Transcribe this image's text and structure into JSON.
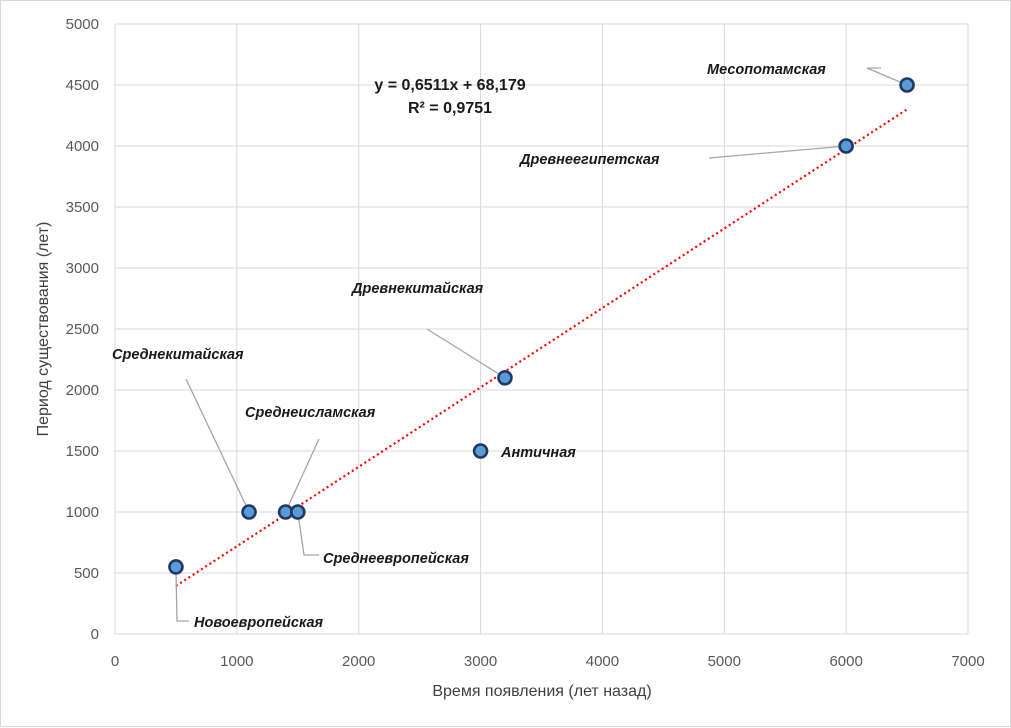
{
  "chart_data": {
    "type": "scatter",
    "xlabel": "Время появления (лет назад)",
    "ylabel": "Период существования (лет)",
    "xlim": [
      0,
      7000
    ],
    "ylim": [
      0,
      5000
    ],
    "xticks": [
      0,
      1000,
      2000,
      3000,
      4000,
      5000,
      6000,
      7000
    ],
    "yticks": [
      0,
      500,
      1000,
      1500,
      2000,
      2500,
      3000,
      3500,
      4000,
      4500,
      5000
    ],
    "grid": true,
    "points": [
      {
        "label": "Месопотамская",
        "x": 6500,
        "y": 4500
      },
      {
        "label": "Древнеегипетская",
        "x": 6000,
        "y": 4000
      },
      {
        "label": "Древнекитайская",
        "x": 3200,
        "y": 2100
      },
      {
        "label": "Античная",
        "x": 3000,
        "y": 1500
      },
      {
        "label": "Среднекитайская",
        "x": 1100,
        "y": 1000
      },
      {
        "label": "Среднеисламская",
        "x": 1400,
        "y": 1000
      },
      {
        "label": "Среднеевропейская",
        "x": 1500,
        "y": 1000
      },
      {
        "label": "Новоевропейская",
        "x": 500,
        "y": 550
      }
    ],
    "trendline": {
      "type": "linear",
      "slope": 0.6511,
      "intercept": 68.179,
      "equation": "y = 0,6511x + 68,179",
      "r_squared": "R² = 0,9751",
      "color": "#ff0000"
    },
    "marker_fill": "#5b9bd5",
    "marker_stroke": "#1f3864"
  }
}
